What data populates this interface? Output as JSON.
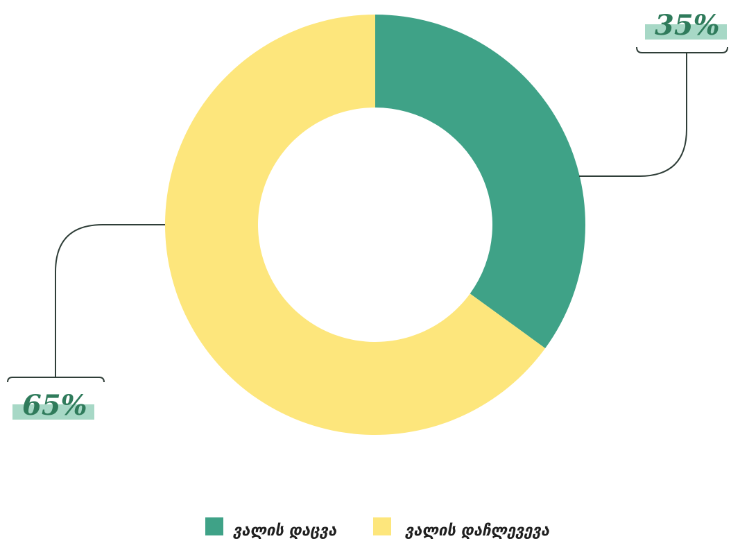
{
  "chart_data": {
    "type": "pie",
    "variant": "donut",
    "title": "",
    "slices": [
      {
        "label": "ვალის დაცვა",
        "value": 35,
        "display": "35%",
        "color": "#3fa287"
      },
      {
        "label": "ვალის დაჩლევევა",
        "value": 65,
        "display": "65%",
        "color": "#fde67c"
      }
    ],
    "legend_position": "bottom-center",
    "label_highlight_color": "#a7d8c6",
    "leader_line_color": "#2f3e38"
  }
}
